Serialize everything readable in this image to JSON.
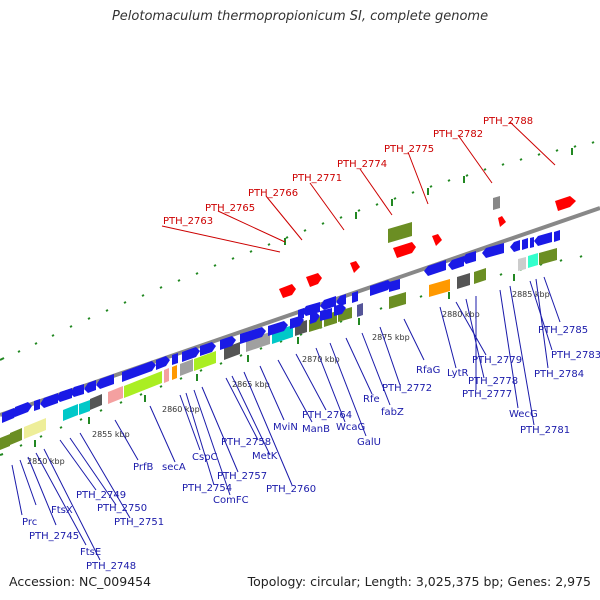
{
  "title": "Pelotomaculum thermopropionicum SI, complete genome",
  "accession": "Accession: NC_009454",
  "summary": "Topology: circular; Length: 3,025,375 bp; Genes: 2,975",
  "colors": {
    "backbone": "#888888",
    "forward_gene": "#1a1ae6",
    "reverse_gene_labels": "#1a1aaa",
    "rna": "#ff0000",
    "rna_label": "#cc0000",
    "cog_olive": "#6b8e23",
    "cog_cyan": "#00c8c8",
    "cog_lime": "#aaee22",
    "cog_pink": "#f4a0a0",
    "cog_orange": "#ff9900",
    "cog_gray": "#a0a0a0",
    "cog_dark": "#555555",
    "cog_yellow": "#eeee99",
    "cog_mint": "#33ffcc",
    "tick_green": "#228822"
  },
  "kbp_labels": [
    "2850 kbp",
    "2855 kbp",
    "2860 kbp",
    "2865 kbp",
    "2870 kbp",
    "2875 kbp",
    "2880 kbp",
    "2885 kbp"
  ],
  "top_labels": [
    "PTH_2763",
    "PTH_2765",
    "PTH_2766",
    "PTH_2771",
    "PTH_2774",
    "PTH_2775",
    "PTH_2782",
    "PTH_2788"
  ],
  "bottom_labels": [
    "Prc",
    "FtsX",
    "PTH_2745",
    "FtsE",
    "PTH_2748",
    "PTH_2749",
    "PTH_2750",
    "PTH_2751",
    "PrfB",
    "secA",
    "CspC",
    "PTH_2754",
    "ComFC",
    "PTH_2757",
    "PTH_2758",
    "MetK",
    "PTH_2760",
    "MviN",
    "ManB",
    "PTH_2764",
    "WcaG",
    "GalU",
    "Rfe",
    "fabZ",
    "PTH_2772",
    "RfaG",
    "LytR",
    "PTH_2779",
    "PTH_2778",
    "PTH_2777",
    "WecG",
    "PTH_2781",
    "PTH_2783",
    "PTH_2784",
    "PTH_2785"
  ]
}
